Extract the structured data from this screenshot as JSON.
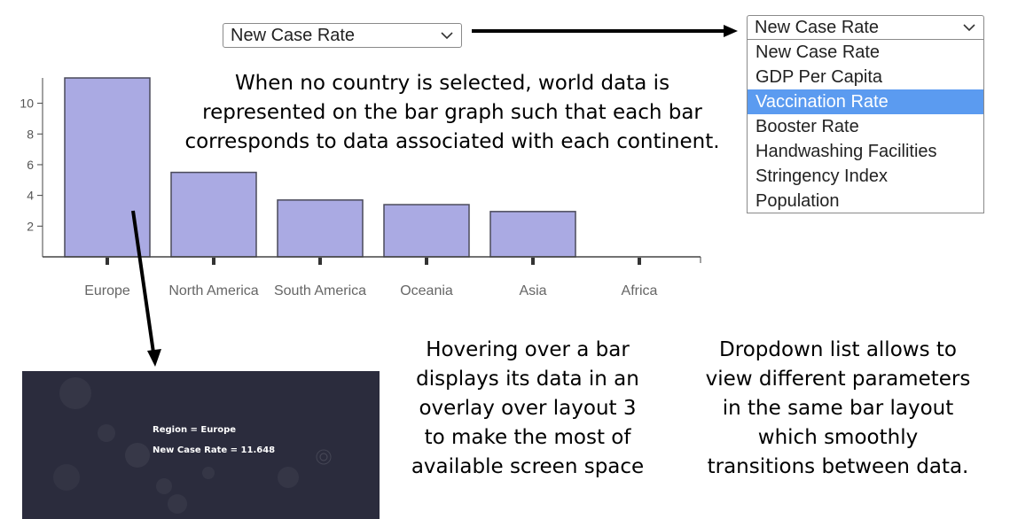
{
  "main_select": {
    "value": "New Case Rate"
  },
  "open_select": {
    "value": "New Case Rate",
    "options": [
      "New Case Rate",
      "GDP Per Capita",
      "Vaccination Rate",
      "Booster Rate",
      "Handwashing Facilities",
      "Stringency Index",
      "Population"
    ],
    "highlighted": "Vaccination Rate"
  },
  "annotations": {
    "world": [
      "When no country is selected, world data is",
      "represented on the bar graph such that each bar",
      "corresponds to data associated with each continent."
    ],
    "hover": [
      "Hovering over a bar",
      "displays its data in an",
      "overlay over layout 3",
      "to make the most of",
      "available screen space"
    ],
    "dropdown": [
      "Dropdown list allows to",
      "view different parameters",
      "in the same bar layout",
      "which smoothly",
      "transitions between data."
    ]
  },
  "overlay": {
    "line1": "Region = Europe",
    "line2": "New Case Rate = 11.648"
  },
  "chart_data": {
    "type": "bar",
    "categories": [
      "Europe",
      "North America",
      "South America",
      "Oceania",
      "Asia",
      "Africa"
    ],
    "values": [
      11.648,
      5.5,
      3.7,
      3.4,
      2.95,
      0
    ],
    "yticks": [
      2,
      4,
      6,
      8,
      10
    ],
    "ylim": [
      0,
      11.648
    ],
    "bar_color": "#aaaae3",
    "bar_stroke": "#4a4a5a"
  }
}
